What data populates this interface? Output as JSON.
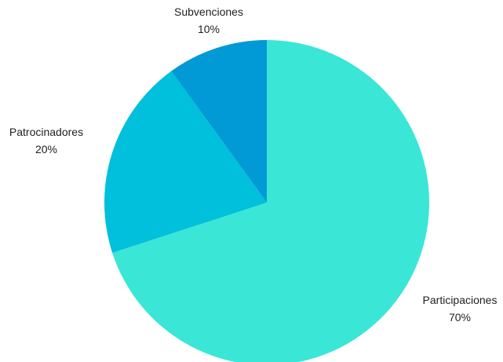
{
  "chart_data": {
    "type": "pie",
    "start_angle_deg": 0,
    "direction": "clockwise",
    "slices": [
      {
        "label": "Participaciones",
        "value": 70,
        "value_label": "70%",
        "color": "#3ae6d6"
      },
      {
        "label": "Patrocinadores",
        "value": 20,
        "value_label": "20%",
        "color": "#00c0db"
      },
      {
        "label": "Subvenciones",
        "value": 10,
        "value_label": "10%",
        "color": "#019ad6"
      }
    ],
    "legend": "none"
  }
}
